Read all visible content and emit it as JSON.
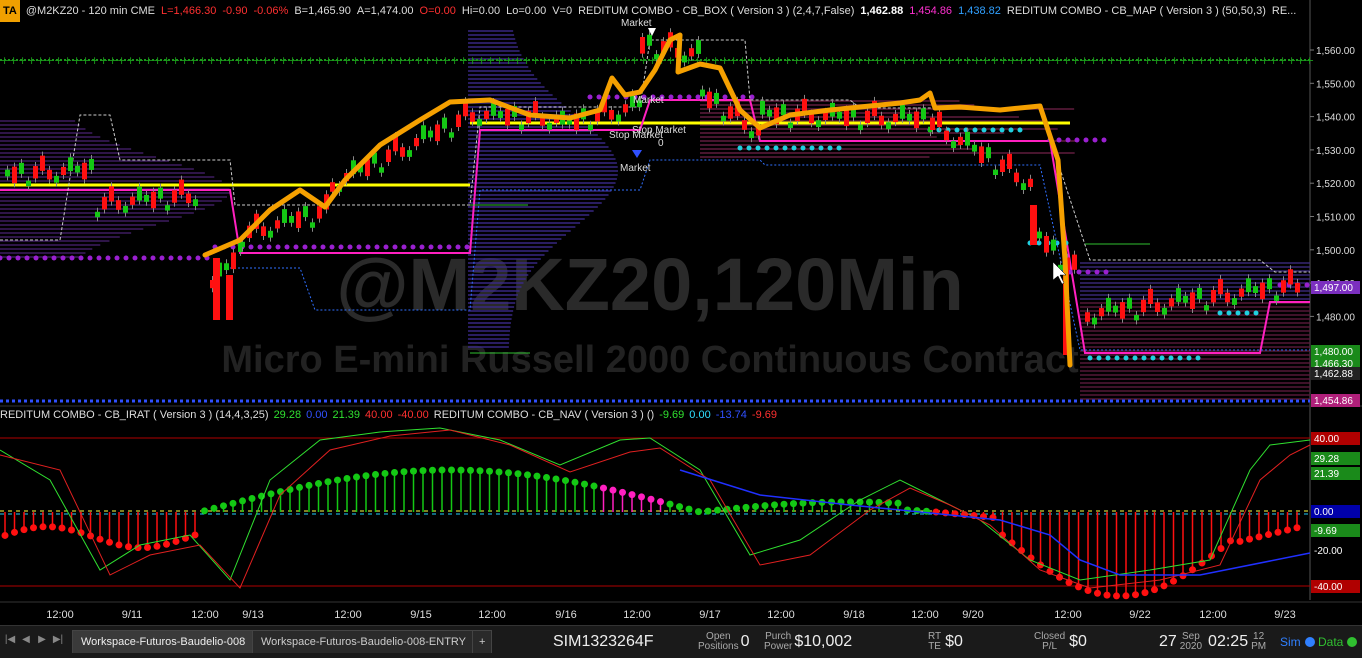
{
  "header": {
    "tag": "TA",
    "symbol_line": "@M2KZ20 - 120 min  CME",
    "L": "L=1,466.30",
    "chg": "-0.90",
    "pct": "-0.06%",
    "B": "B=1,465.90",
    "A": "A=1,474.00",
    "O": "O=0.00",
    "Hi": "Hi=0.00",
    "Lo": "Lo=0.00",
    "V": "V=0",
    "ind1": "REDITUM COMBO - CB_BOX ( Version 3 ) (2,4,7,False)",
    "v1": "1,462.88",
    "v2": "1,454.86",
    "v3": "1,438.82",
    "ind2": "REDITUM COMBO - CB_MAP ( Version 3 ) (50,50,3)",
    "ind2_trunc": "RE..."
  },
  "watermark": {
    "symbol": "@M2KZ20,120Min",
    "description": "Micro E-mini Russell 2000 Continuous Contract"
  },
  "subheader": {
    "ind3": "REDITUM COMBO - CB_IRAT ( Version 3 ) (14,4,3,25)",
    "a": "29.28",
    "b": "0.00",
    "c": "21.39",
    "d": "40.00",
    "e": "-40.00",
    "ind4": "REDITUM COMBO - CB_NAV ( Version 3 ) ()",
    "f": "-9.69",
    "g": "0.00",
    "h": "-13.74",
    "i": "-9.69"
  },
  "annotations": {
    "market_top": "Market",
    "market_mid": "Market",
    "stop_market_1": "Stop Market",
    "stop_market_2": "Stop Market",
    "zero": "0",
    "market_bottom": "Market"
  },
  "price_axis": {
    "ticks": [
      "1,560.00",
      "1,550.00",
      "1,540.00",
      "1,530.00",
      "1,520.00",
      "1,510.00",
      "1,500.00",
      "1,490.00",
      "1,480.00"
    ],
    "labels": [
      {
        "text": "1,497.00",
        "color": "#7b2fbf"
      },
      {
        "text": "1,480.00",
        "color": "#1a8a1a"
      },
      {
        "text": "1,466.30",
        "color": "#1a8a1a"
      },
      {
        "text": "1,462.88",
        "color": "#222222"
      },
      {
        "text": "1,454.86",
        "color": "#b0207a"
      }
    ]
  },
  "osc_axis": {
    "labels": [
      {
        "text": "40.00",
        "color": "#b00000"
      },
      {
        "text": "29.28",
        "color": "#1a8a1a"
      },
      {
        "text": "21.39",
        "color": "#1a8a1a"
      },
      {
        "text": "0.00",
        "color": "#0000aa"
      },
      {
        "text": "-9.69",
        "color": "#1a8a1a"
      },
      {
        "text": "-20.00",
        "color": "#000000"
      },
      {
        "text": "-40.00",
        "color": "#b00000"
      }
    ]
  },
  "time_axis": [
    "12:00",
    "9/11",
    "12:00",
    "9/13",
    "12:00",
    "9/15",
    "12:00",
    "9/16",
    "12:00",
    "9/17",
    "12:00",
    "9/18",
    "12:00",
    "9/20",
    "12:00",
    "9/22",
    "12:00",
    "9/23"
  ],
  "statusbar": {
    "tabs": [
      "Workspace-Futuros-Baudelio-008",
      "Workspace-Futuros-Baudelio-008-ENTRY"
    ],
    "add_tab": "+",
    "account": "SIM1323264F",
    "open_positions_label": "Open\nPositions",
    "open_positions": "0",
    "purch_power_label": "Purch\nPower",
    "purch_power": "$10,002",
    "rt_te_label": "RT\nTE",
    "rt_te": "$0",
    "closed_pl_label": "Closed\nP/L",
    "closed_pl": "$0",
    "date_day": "27",
    "date_month": "Sep",
    "date_year": "2020",
    "time": "02:25",
    "time_suffix_1": "12",
    "time_suffix_2": "PM",
    "sim_label": "Sim",
    "data_label": "Data"
  },
  "colors": {
    "bull": "#14c814",
    "bear": "#ff1010",
    "orange": "#f5a000",
    "magenta": "#ff20c0",
    "yellow": "#ffff00",
    "purple": "#9a20d0",
    "cyan": "#20d0e0",
    "green_dots": "#1a8a1a"
  }
}
